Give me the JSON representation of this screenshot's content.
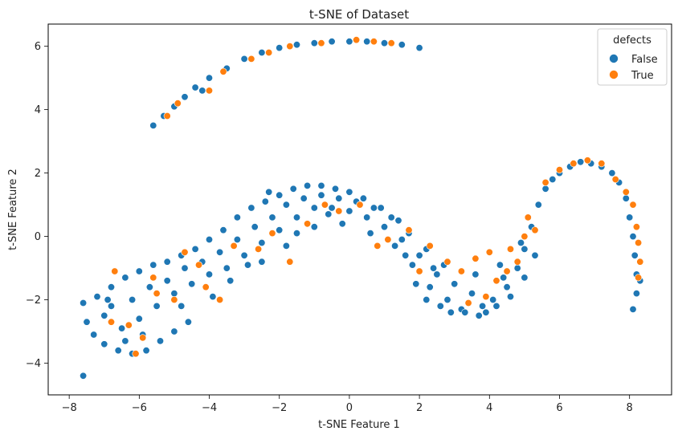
{
  "chart_data": {
    "type": "scatter",
    "title": "t-SNE of Dataset",
    "xlabel": "t-SNE Feature 1",
    "ylabel": "t-SNE Feature 2",
    "xlim": [
      -8.6,
      9.2
    ],
    "ylim": [
      -5.0,
      6.7
    ],
    "xticks": [
      -8,
      -6,
      -4,
      -2,
      0,
      2,
      4,
      6,
      8
    ],
    "yticks": [
      -4,
      -2,
      0,
      2,
      4,
      6
    ],
    "grid": false,
    "legend": {
      "title": "defects",
      "placement": "top-right",
      "entries": [
        "False",
        "True"
      ]
    },
    "colors": {
      "False": "#1f77b4",
      "True": "#ff7f0e"
    },
    "series": [
      {
        "name": "False",
        "points": [
          [
            -7.6,
            -2.1
          ],
          [
            -7.5,
            -2.7
          ],
          [
            -7.3,
            -3.1
          ],
          [
            -7.0,
            -3.4
          ],
          [
            -6.6,
            -3.6
          ],
          [
            -6.2,
            -3.7
          ],
          [
            -5.8,
            -3.6
          ],
          [
            -5.4,
            -3.3
          ],
          [
            -5.0,
            -3.0
          ],
          [
            -4.6,
            -2.7
          ],
          [
            -7.2,
            -1.9
          ],
          [
            -6.8,
            -1.6
          ],
          [
            -6.4,
            -1.3
          ],
          [
            -6.0,
            -1.1
          ],
          [
            -5.6,
            -0.9
          ],
          [
            -5.2,
            -0.8
          ],
          [
            -4.8,
            -0.6
          ],
          [
            -4.4,
            -0.4
          ],
          [
            -4.0,
            -0.1
          ],
          [
            -3.6,
            0.2
          ],
          [
            -7.0,
            -2.5
          ],
          [
            -6.5,
            -2.9
          ],
          [
            -6.0,
            -2.6
          ],
          [
            -5.5,
            -2.2
          ],
          [
            -5.0,
            -1.8
          ],
          [
            -4.5,
            -1.5
          ],
          [
            -4.0,
            -1.2
          ],
          [
            -3.5,
            -1.0
          ],
          [
            -3.0,
            -0.6
          ],
          [
            -2.5,
            -0.2
          ],
          [
            -6.8,
            -2.2
          ],
          [
            -6.2,
            -2.0
          ],
          [
            -5.7,
            -1.6
          ],
          [
            -5.2,
            -1.4
          ],
          [
            -4.7,
            -1.0
          ],
          [
            -4.2,
            -0.8
          ],
          [
            -3.7,
            -0.5
          ],
          [
            -3.2,
            -0.1
          ],
          [
            -2.7,
            0.3
          ],
          [
            -2.2,
            0.6
          ],
          [
            -3.2,
            0.6
          ],
          [
            -2.8,
            0.9
          ],
          [
            -2.4,
            1.1
          ],
          [
            -2.0,
            1.3
          ],
          [
            -1.6,
            1.5
          ],
          [
            -1.2,
            1.6
          ],
          [
            -0.8,
            1.6
          ],
          [
            -0.4,
            1.5
          ],
          [
            0.0,
            1.4
          ],
          [
            0.4,
            1.2
          ],
          [
            -2.0,
            0.2
          ],
          [
            -1.5,
            0.6
          ],
          [
            -1.0,
            0.9
          ],
          [
            -0.5,
            0.9
          ],
          [
            0.0,
            0.8
          ],
          [
            0.5,
            0.6
          ],
          [
            1.0,
            0.3
          ],
          [
            1.5,
            -0.1
          ],
          [
            2.0,
            -0.6
          ],
          [
            2.5,
            -1.2
          ],
          [
            -1.8,
            1.0
          ],
          [
            -1.3,
            1.2
          ],
          [
            -0.8,
            1.3
          ],
          [
            -0.3,
            1.2
          ],
          [
            0.2,
            1.1
          ],
          [
            0.7,
            0.9
          ],
          [
            1.2,
            0.6
          ],
          [
            1.7,
            0.1
          ],
          [
            2.2,
            -0.4
          ],
          [
            2.7,
            -0.9
          ],
          [
            -2.5,
            -0.8
          ],
          [
            -1.8,
            -0.3
          ],
          [
            -1.0,
            0.3
          ],
          [
            -0.2,
            0.4
          ],
          [
            0.6,
            0.1
          ],
          [
            1.3,
            -0.3
          ],
          [
            1.8,
            -0.9
          ],
          [
            2.3,
            -1.6
          ],
          [
            2.8,
            -2.0
          ],
          [
            3.2,
            -2.3
          ],
          [
            3.0,
            -1.5
          ],
          [
            3.5,
            -1.8
          ],
          [
            3.8,
            -2.2
          ],
          [
            4.1,
            -2.0
          ],
          [
            4.5,
            -1.6
          ],
          [
            4.8,
            -1.0
          ],
          [
            5.0,
            -0.4
          ],
          [
            5.2,
            0.3
          ],
          [
            5.4,
            1.0
          ],
          [
            5.6,
            1.5
          ],
          [
            3.3,
            -2.4
          ],
          [
            3.7,
            -2.5
          ],
          [
            4.2,
            -2.2
          ],
          [
            4.6,
            -1.9
          ],
          [
            5.0,
            -1.3
          ],
          [
            5.3,
            -0.6
          ],
          [
            2.6,
            -2.2
          ],
          [
            2.2,
            -2.0
          ],
          [
            1.9,
            -1.5
          ],
          [
            1.6,
            -0.6
          ],
          [
            5.8,
            1.8
          ],
          [
            6.0,
            2.0
          ],
          [
            6.3,
            2.2
          ],
          [
            6.6,
            2.35
          ],
          [
            6.9,
            2.3
          ],
          [
            7.2,
            2.2
          ],
          [
            7.5,
            2.0
          ],
          [
            7.7,
            1.7
          ],
          [
            7.9,
            1.2
          ],
          [
            8.0,
            0.6
          ],
          [
            8.1,
            0.0
          ],
          [
            8.15,
            -0.6
          ],
          [
            8.2,
            -1.2
          ],
          [
            8.2,
            -1.8
          ],
          [
            8.1,
            -2.3
          ],
          [
            8.3,
            -1.4
          ],
          [
            -5.6,
            3.5
          ],
          [
            -5.3,
            3.8
          ],
          [
            -5.0,
            4.1
          ],
          [
            -4.7,
            4.4
          ],
          [
            -4.4,
            4.7
          ],
          [
            -4.0,
            5.0
          ],
          [
            -3.5,
            5.3
          ],
          [
            -3.0,
            5.6
          ],
          [
            -2.5,
            5.8
          ],
          [
            -2.0,
            5.95
          ],
          [
            -1.5,
            6.05
          ],
          [
            -1.0,
            6.1
          ],
          [
            -0.5,
            6.15
          ],
          [
            0.0,
            6.15
          ],
          [
            0.5,
            6.15
          ],
          [
            1.0,
            6.1
          ],
          [
            1.5,
            6.05
          ],
          [
            2.0,
            5.95
          ],
          [
            -4.2,
            4.6
          ],
          [
            -7.6,
            -4.4
          ],
          [
            -6.4,
            -3.3
          ],
          [
            -5.9,
            -3.1
          ],
          [
            -6.9,
            -2.0
          ],
          [
            -4.8,
            -2.2
          ],
          [
            -3.9,
            -1.9
          ],
          [
            -3.4,
            -1.4
          ],
          [
            -2.9,
            -0.9
          ],
          [
            -1.5,
            0.1
          ],
          [
            -0.6,
            0.7
          ],
          [
            0.9,
            0.9
          ],
          [
            1.4,
            0.5
          ],
          [
            2.4,
            -1.0
          ],
          [
            3.6,
            -1.2
          ],
          [
            4.3,
            -0.9
          ],
          [
            4.9,
            -0.2
          ],
          [
            2.9,
            -2.4
          ],
          [
            3.9,
            -2.4
          ],
          [
            4.4,
            -1.3
          ],
          [
            -2.3,
            1.4
          ]
        ]
      },
      {
        "name": "True",
        "points": [
          [
            -6.7,
            -1.1
          ],
          [
            -6.3,
            -2.8
          ],
          [
            -5.9,
            -3.2
          ],
          [
            -5.5,
            -1.8
          ],
          [
            -5.0,
            -2.0
          ],
          [
            -4.7,
            -0.5
          ],
          [
            -4.3,
            -0.9
          ],
          [
            -3.7,
            -2.0
          ],
          [
            -3.3,
            -0.3
          ],
          [
            -2.6,
            -0.4
          ],
          [
            -2.2,
            0.1
          ],
          [
            -1.7,
            -0.8
          ],
          [
            -1.2,
            0.4
          ],
          [
            -0.7,
            1.0
          ],
          [
            0.3,
            1.0
          ],
          [
            1.1,
            -0.1
          ],
          [
            1.7,
            0.2
          ],
          [
            2.3,
            -0.3
          ],
          [
            2.8,
            -0.8
          ],
          [
            3.2,
            -1.1
          ],
          [
            3.6,
            -0.7
          ],
          [
            3.9,
            -1.9
          ],
          [
            4.2,
            -1.4
          ],
          [
            4.5,
            -1.1
          ],
          [
            4.8,
            -0.8
          ],
          [
            5.0,
            0.0
          ],
          [
            5.1,
            0.6
          ],
          [
            5.3,
            0.2
          ],
          [
            5.6,
            1.7
          ],
          [
            6.0,
            2.1
          ],
          [
            6.4,
            2.3
          ],
          [
            6.8,
            2.4
          ],
          [
            7.2,
            2.3
          ],
          [
            7.6,
            1.8
          ],
          [
            7.9,
            1.4
          ],
          [
            8.1,
            1.0
          ],
          [
            8.2,
            0.3
          ],
          [
            8.25,
            -0.2
          ],
          [
            8.3,
            -0.8
          ],
          [
            8.25,
            -1.3
          ],
          [
            -5.2,
            3.8
          ],
          [
            -4.9,
            4.2
          ],
          [
            -4.0,
            4.6
          ],
          [
            -3.6,
            5.2
          ],
          [
            -2.8,
            5.6
          ],
          [
            -2.3,
            5.8
          ],
          [
            -1.7,
            6.0
          ],
          [
            -0.8,
            6.1
          ],
          [
            0.2,
            6.2
          ],
          [
            0.7,
            6.15
          ],
          [
            1.2,
            6.1
          ],
          [
            -6.1,
            -3.7
          ],
          [
            -6.8,
            -2.7
          ],
          [
            -5.6,
            -1.3
          ],
          [
            -4.1,
            -1.6
          ],
          [
            -0.3,
            0.8
          ],
          [
            0.8,
            -0.3
          ],
          [
            2.0,
            -1.1
          ],
          [
            3.4,
            -2.1
          ],
          [
            4.0,
            -0.5
          ],
          [
            4.6,
            -0.4
          ]
        ]
      }
    ]
  }
}
